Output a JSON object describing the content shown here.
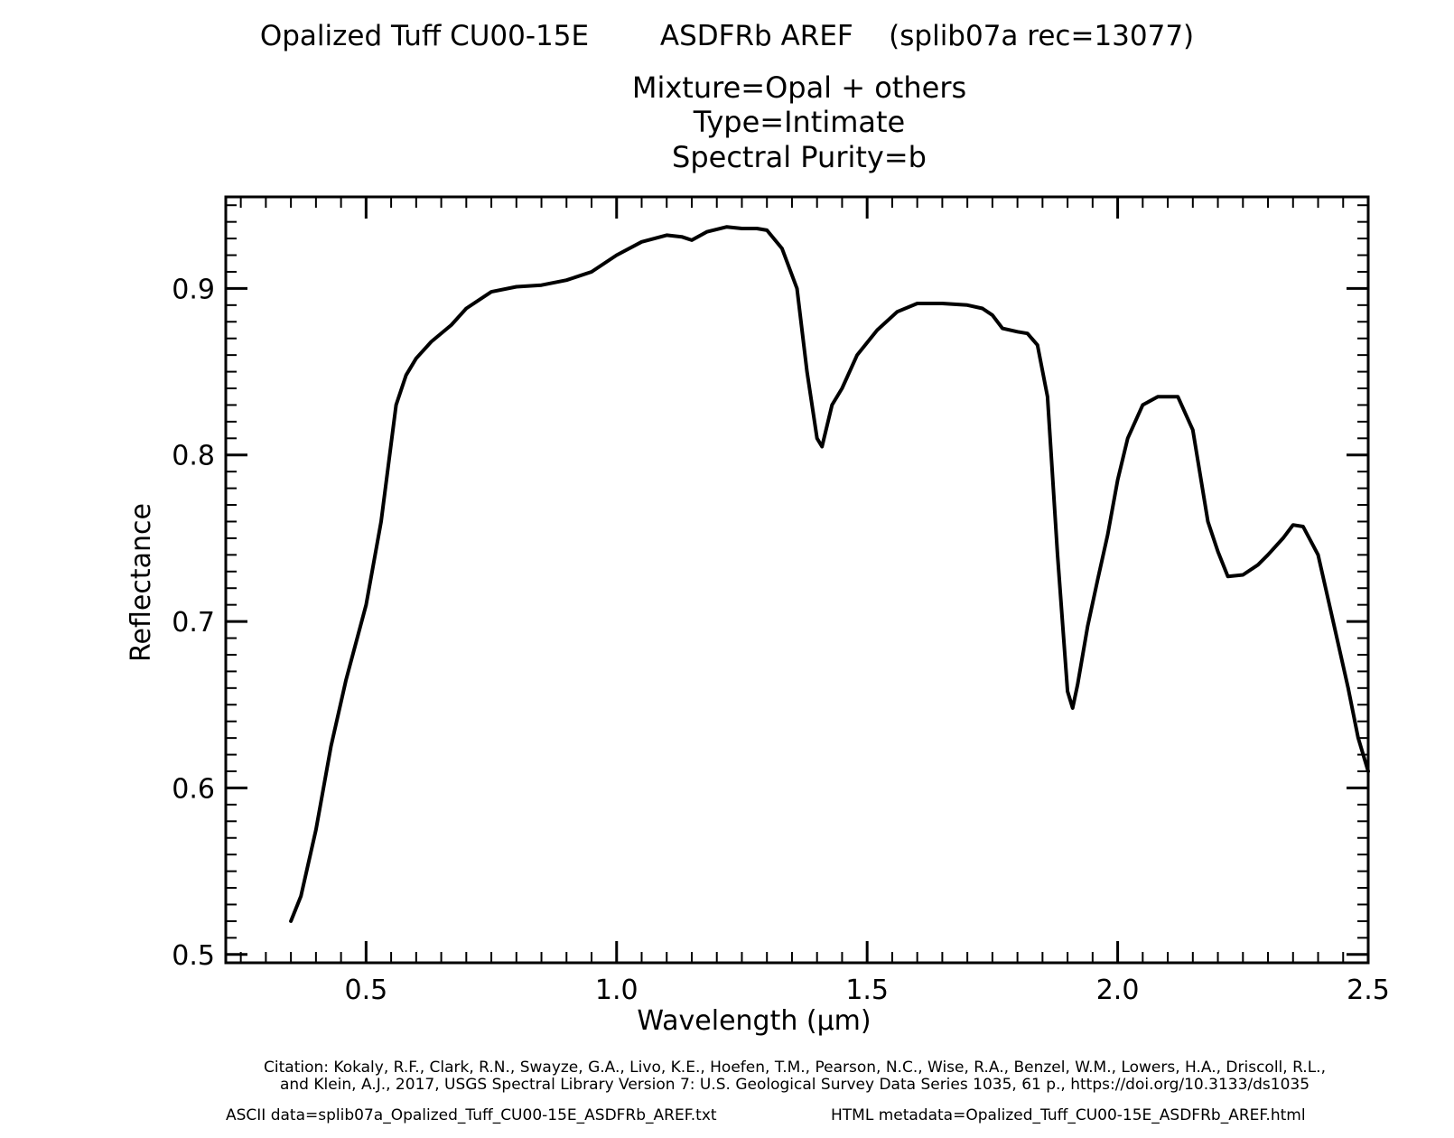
{
  "titles": {
    "main": "Opalized Tuff CU00-15E        ASDFRb AREF    (splib07a rec=13077)",
    "line2": "Mixture=Opal + others",
    "line3": "Type=Intimate",
    "line4": "Spectral Purity=b"
  },
  "footer": {
    "citation_line1": "Citation: Kokaly, R.F., Clark, R.N., Swayze, G.A., Livo, K.E., Hoefen, T.M., Pearson, N.C., Wise, R.A., Benzel, W.M., Lowers, H.A., Driscoll, R.L.,",
    "citation_line2": "and Klein, A.J., 2017, USGS Spectral Library Version 7: U.S. Geological Survey Data Series 1035, 61 p., https://doi.org/10.3133/ds1035",
    "ascii": "ASCII data=splib07a_Opalized_Tuff_CU00-15E_ASDFRb_AREF.txt",
    "html": "HTML metadata=Opalized_Tuff_CU00-15E_ASDFRb_AREF.html"
  },
  "chart_data": {
    "type": "line",
    "xlabel": "Wavelength (μm)",
    "ylabel": "Reflectance",
    "xlim": [
      0.22,
      2.5
    ],
    "ylim": [
      0.495,
      0.955
    ],
    "x_ticks": [
      0.5,
      1.0,
      1.5,
      2.0,
      2.5
    ],
    "x_tick_labels": [
      "0.5",
      "1.0",
      "1.5",
      "2.0",
      "2.5"
    ],
    "y_ticks": [
      0.5,
      0.6,
      0.7,
      0.8,
      0.9
    ],
    "y_tick_labels": [
      "0.5",
      "0.6",
      "0.7",
      "0.8",
      "0.9"
    ],
    "grid": false,
    "line_color": "#000000",
    "series": [
      {
        "x": [
          0.35,
          0.37,
          0.4,
          0.43,
          0.46,
          0.5,
          0.53,
          0.56,
          0.58,
          0.6,
          0.63,
          0.67,
          0.7,
          0.75,
          0.8,
          0.85,
          0.9,
          0.95,
          1.0,
          1.05,
          1.1,
          1.13,
          1.15,
          1.18,
          1.22,
          1.25,
          1.28,
          1.3,
          1.33,
          1.36,
          1.38,
          1.4,
          1.41,
          1.43,
          1.45,
          1.48,
          1.52,
          1.56,
          1.6,
          1.65,
          1.7,
          1.73,
          1.75,
          1.77,
          1.8,
          1.82,
          1.84,
          1.86,
          1.88,
          1.9,
          1.91,
          1.92,
          1.94,
          1.96,
          1.98,
          2.0,
          2.02,
          2.05,
          2.08,
          2.12,
          2.15,
          2.18,
          2.2,
          2.22,
          2.25,
          2.28,
          2.3,
          2.33,
          2.35,
          2.37,
          2.4,
          2.43,
          2.46,
          2.48,
          2.5
        ],
        "y": [
          0.52,
          0.535,
          0.575,
          0.625,
          0.665,
          0.71,
          0.76,
          0.83,
          0.848,
          0.858,
          0.868,
          0.878,
          0.888,
          0.898,
          0.901,
          0.902,
          0.905,
          0.91,
          0.92,
          0.928,
          0.932,
          0.931,
          0.929,
          0.934,
          0.937,
          0.936,
          0.936,
          0.935,
          0.924,
          0.9,
          0.85,
          0.81,
          0.805,
          0.83,
          0.84,
          0.86,
          0.875,
          0.886,
          0.891,
          0.891,
          0.89,
          0.888,
          0.884,
          0.876,
          0.874,
          0.873,
          0.866,
          0.835,
          0.74,
          0.658,
          0.648,
          0.662,
          0.697,
          0.725,
          0.752,
          0.785,
          0.81,
          0.83,
          0.835,
          0.835,
          0.815,
          0.76,
          0.742,
          0.727,
          0.728,
          0.734,
          0.74,
          0.75,
          0.758,
          0.757,
          0.74,
          0.7,
          0.66,
          0.63,
          0.61
        ]
      }
    ]
  }
}
